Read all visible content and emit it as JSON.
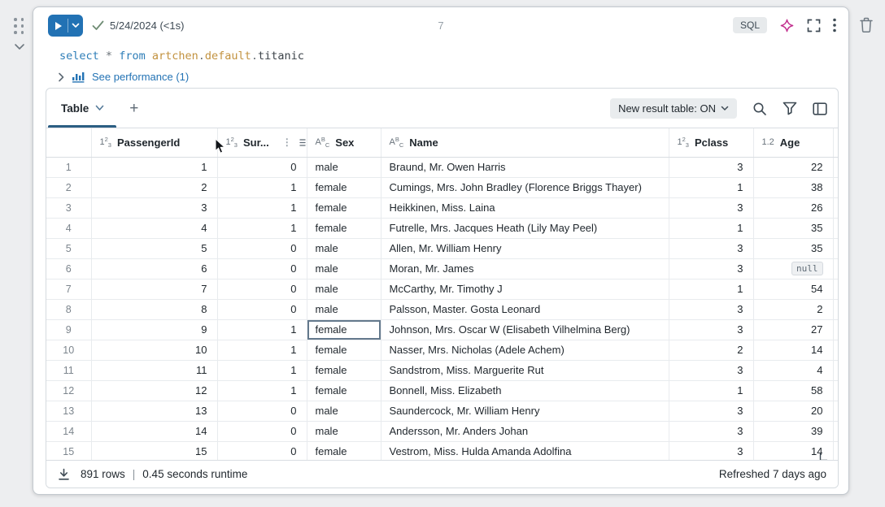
{
  "page": {
    "cell_number": "7"
  },
  "toolbar": {
    "run_status_date": "5/24/2024 (<1s)",
    "language_badge": "SQL"
  },
  "code": {
    "tokens": [
      {
        "text": "select",
        "type": "keyword"
      },
      {
        "text": " ",
        "type": "plain"
      },
      {
        "text": "*",
        "type": "operator"
      },
      {
        "text": " ",
        "type": "plain"
      },
      {
        "text": "from",
        "type": "keyword"
      },
      {
        "text": " ",
        "type": "plain"
      },
      {
        "text": "artchen",
        "type": "identifier"
      },
      {
        "text": ".",
        "type": "punct"
      },
      {
        "text": "default",
        "type": "identifier"
      },
      {
        "text": ".",
        "type": "punct"
      },
      {
        "text": "titanic",
        "type": "plain"
      }
    ]
  },
  "performance": {
    "label": "See performance (1)"
  },
  "results": {
    "tab_label": "Table",
    "new_result_toggle": "New result table: ON",
    "type_icons": {
      "int": {
        "main": "1",
        "sup": "2",
        "sub": "3"
      },
      "str": {
        "main": "A",
        "sup": "B",
        "sub": "C"
      },
      "float": {
        "text": "1.2"
      },
      "partial": {
        "text": "1"
      }
    },
    "columns": [
      {
        "label": "",
        "type": "rownum"
      },
      {
        "label": "PassengerId",
        "type": "int"
      },
      {
        "label": "Sur...",
        "type": "int",
        "menu_icons": true
      },
      {
        "label": "Sex",
        "type": "str"
      },
      {
        "label": "Name",
        "type": "str"
      },
      {
        "label": "Pclass",
        "type": "int"
      },
      {
        "label": "Age",
        "type": "float"
      },
      {
        "label": "",
        "type": "partial"
      }
    ],
    "selected_cell": {
      "row_number": 9,
      "column": "Sex"
    },
    "rows": [
      {
        "n": 1,
        "passenger_id": 1,
        "survived": 0,
        "sex": "male",
        "name": "Braund, Mr. Owen Harris",
        "pclass": 3,
        "age": "22"
      },
      {
        "n": 2,
        "passenger_id": 2,
        "survived": 1,
        "sex": "female",
        "name": "Cumings, Mrs. John Bradley (Florence Briggs Thayer)",
        "pclass": 1,
        "age": "38"
      },
      {
        "n": 3,
        "passenger_id": 3,
        "survived": 1,
        "sex": "female",
        "name": "Heikkinen, Miss. Laina",
        "pclass": 3,
        "age": "26"
      },
      {
        "n": 4,
        "passenger_id": 4,
        "survived": 1,
        "sex": "female",
        "name": "Futrelle, Mrs. Jacques Heath (Lily May Peel)",
        "pclass": 1,
        "age": "35"
      },
      {
        "n": 5,
        "passenger_id": 5,
        "survived": 0,
        "sex": "male",
        "name": "Allen, Mr. William Henry",
        "pclass": 3,
        "age": "35"
      },
      {
        "n": 6,
        "passenger_id": 6,
        "survived": 0,
        "sex": "male",
        "name": "Moran, Mr. James",
        "pclass": 3,
        "age": null
      },
      {
        "n": 7,
        "passenger_id": 7,
        "survived": 0,
        "sex": "male",
        "name": "McCarthy, Mr. Timothy J",
        "pclass": 1,
        "age": "54"
      },
      {
        "n": 8,
        "passenger_id": 8,
        "survived": 0,
        "sex": "male",
        "name": "Palsson, Master. Gosta Leonard",
        "pclass": 3,
        "age": "2"
      },
      {
        "n": 9,
        "passenger_id": 9,
        "survived": 1,
        "sex": "female",
        "name": "Johnson, Mrs. Oscar W (Elisabeth Vilhelmina Berg)",
        "pclass": 3,
        "age": "27"
      },
      {
        "n": 10,
        "passenger_id": 10,
        "survived": 1,
        "sex": "female",
        "name": "Nasser, Mrs. Nicholas (Adele Achem)",
        "pclass": 2,
        "age": "14"
      },
      {
        "n": 11,
        "passenger_id": 11,
        "survived": 1,
        "sex": "female",
        "name": "Sandstrom, Miss. Marguerite Rut",
        "pclass": 3,
        "age": "4"
      },
      {
        "n": 12,
        "passenger_id": 12,
        "survived": 1,
        "sex": "female",
        "name": "Bonnell, Miss. Elizabeth",
        "pclass": 1,
        "age": "58"
      },
      {
        "n": 13,
        "passenger_id": 13,
        "survived": 0,
        "sex": "male",
        "name": "Saundercock, Mr. William Henry",
        "pclass": 3,
        "age": "20"
      },
      {
        "n": 14,
        "passenger_id": 14,
        "survived": 0,
        "sex": "male",
        "name": "Andersson, Mr. Anders Johan",
        "pclass": 3,
        "age": "39"
      },
      {
        "n": 15,
        "passenger_id": 15,
        "survived": 0,
        "sex": "female",
        "name": "Vestrom, Miss. Hulda Amanda Adolfina",
        "pclass": 3,
        "age": "14"
      }
    ],
    "null_label": "null",
    "footer": {
      "rows_count": "891 rows",
      "separator": "|",
      "runtime": "0.45 seconds runtime",
      "refreshed": "Refreshed 7 days ago"
    }
  },
  "colors": {
    "accent_blue": "#2272B4",
    "assistant_magenta": "#C22F8E",
    "keyword_blue": "#2E7EB8",
    "identifier_orange": "#C2923F"
  }
}
